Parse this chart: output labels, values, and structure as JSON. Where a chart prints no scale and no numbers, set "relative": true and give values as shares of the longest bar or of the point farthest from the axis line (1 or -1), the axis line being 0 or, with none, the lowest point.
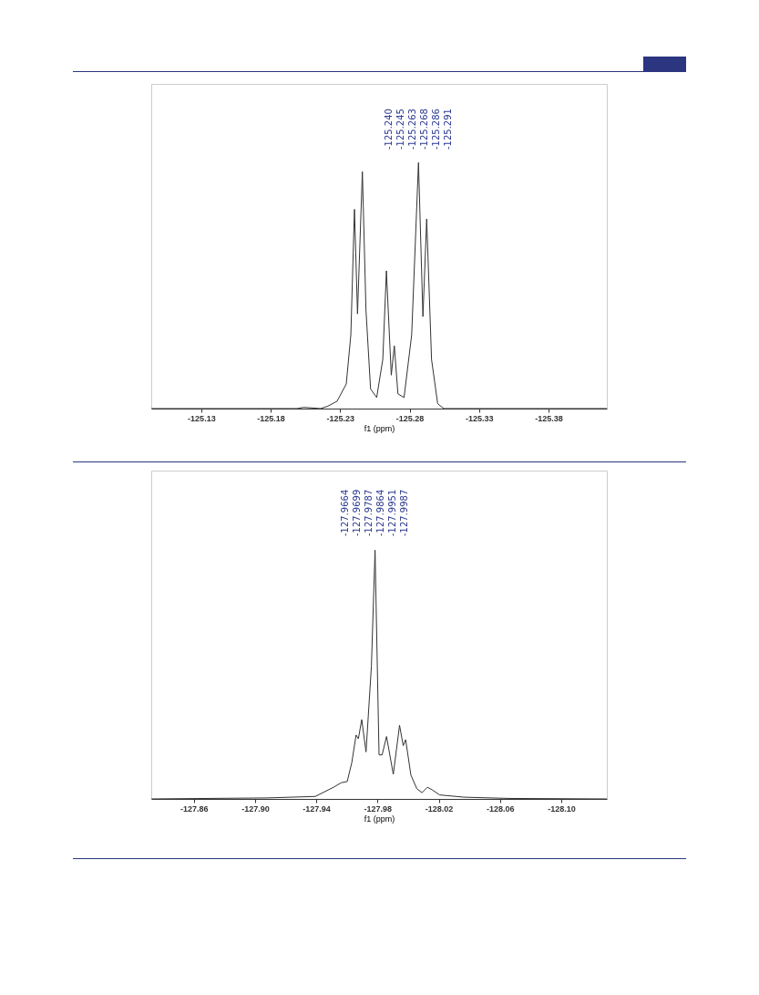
{
  "chart_data": [
    {
      "type": "line",
      "relative": true,
      "xlabel": "f1 (ppm)",
      "xlim": [
        -125.094,
        -125.422
      ],
      "xticks": [
        -125.13,
        -125.18,
        -125.23,
        -125.28,
        -125.33,
        -125.38
      ],
      "x": [
        -125.094,
        -125.199,
        -125.2037,
        -125.216,
        -125.2212,
        -125.2278,
        -125.2344,
        -125.2377,
        -125.2403,
        -125.2425,
        -125.246,
        -125.2486,
        -125.2519,
        -125.2563,
        -125.2607,
        -125.2633,
        -125.2668,
        -125.269,
        -125.2716,
        -125.276,
        -125.2815,
        -125.2864,
        -125.2896,
        -125.2923,
        -125.2958,
        -125.3002,
        -125.3046,
        -125.422
      ],
      "series": [
        {
          "color": "#333333",
          "values": [
            0,
            0,
            0.005,
            0,
            0.01,
            0.03,
            0.1,
            0.3,
            0.81,
            0.385,
            0.963,
            0.4,
            0.08,
            0.045,
            0.2,
            0.56,
            0.136,
            0.255,
            0.06,
            0.045,
            0.3,
            1,
            0.374,
            0.771,
            0.2,
            0.02,
            0,
            0
          ]
        }
      ],
      "annotations": [
        "-125.240",
        "-125.245",
        "-125.263",
        "-125.268",
        "-125.286",
        "-125.291"
      ]
    },
    {
      "type": "line",
      "relative": true,
      "xlabel": "f1 (ppm)",
      "xlim": [
        -127.8322,
        -128.1298
      ],
      "xticks": [
        -127.86,
        {
          "value": -127.9,
          "label": "-127.90"
        },
        -127.94,
        -127.98,
        -128.02,
        -128.06,
        {
          "value": -128.1,
          "label": "-128.10"
        }
      ],
      "x": [
        -127.8322,
        -127.9078,
        -127.9394,
        -127.9513,
        -127.9563,
        -127.9602,
        -127.9632,
        -127.966,
        -127.9675,
        -127.9697,
        -127.9725,
        -127.976,
        -127.9784,
        -127.981,
        -127.983,
        -127.9859,
        -127.9903,
        -127.9944,
        -127.9968,
        -127.9984,
        -128.0018,
        -128.0057,
        -128.0091,
        -128.0126,
        -128.0156,
        -128.0206,
        -128.0364,
        -128.0661,
        -128.1298
      ],
      "series": [
        {
          "color": "#333333",
          "values": [
            0,
            0.004,
            0.01,
            0.047,
            0.065,
            0.07,
            0.146,
            0.257,
            0.242,
            0.319,
            0.189,
            0.533,
            1,
            0.177,
            0.177,
            0.251,
            0.099,
            0.296,
            0.214,
            0.238,
            0.096,
            0.041,
            0.025,
            0.047,
            0.037,
            0.016,
            0.007,
            0.002,
            0
          ]
        }
      ],
      "annotations": [
        "-127.9664",
        "-127.9699",
        "-127.9787",
        "-127.9864",
        "-127.9951",
        "-127.9987"
      ]
    }
  ]
}
